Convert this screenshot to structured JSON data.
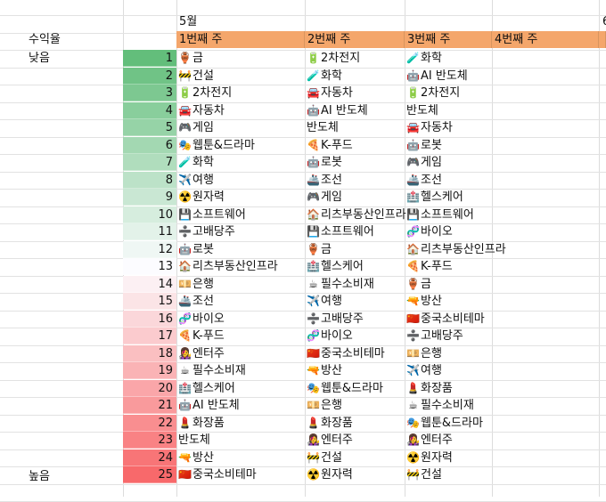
{
  "month_label": "5월",
  "next_col_fragment": "6",
  "row_label_title": "수익율",
  "label_low": "낮음",
  "label_high": "높음",
  "weeks": [
    "1번째 주",
    "2번째 주",
    "3번째 주",
    "4번째 주"
  ],
  "ranks": [
    1,
    2,
    3,
    4,
    5,
    6,
    7,
    8,
    9,
    10,
    11,
    12,
    13,
    14,
    15,
    16,
    17,
    18,
    19,
    20,
    21,
    22,
    23,
    24,
    25
  ],
  "columns": [
    [
      {
        "icon": "🏺",
        "name": "금"
      },
      {
        "icon": "🚧",
        "name": "건설"
      },
      {
        "icon": "🔋",
        "name": "2차전지"
      },
      {
        "icon": "🚘",
        "name": "자동차"
      },
      {
        "icon": "🎮",
        "name": "게임"
      },
      {
        "icon": "🎭",
        "name": "웹툰&드라마"
      },
      {
        "icon": "🧪",
        "name": "화학"
      },
      {
        "icon": "✈️",
        "name": "여행"
      },
      {
        "icon": "☢️",
        "name": "원자력"
      },
      {
        "icon": "💾",
        "name": "소프트웨어"
      },
      {
        "icon": "➗",
        "name": "고배당주"
      },
      {
        "icon": "🤖",
        "name": "로봇"
      },
      {
        "icon": "🏠",
        "name": "리츠부동산인프라"
      },
      {
        "icon": "💴",
        "name": "은행"
      },
      {
        "icon": "🚢",
        "name": "조선"
      },
      {
        "icon": "🧬",
        "name": "바이오"
      },
      {
        "icon": "🍕",
        "name": "K-푸드"
      },
      {
        "icon": "👩‍🎤",
        "name": "엔터주"
      },
      {
        "icon": "☕",
        "name": "필수소비재"
      },
      {
        "icon": "🏥",
        "name": "헬스케어"
      },
      {
        "icon": "🤖",
        "name": "AI 반도체"
      },
      {
        "icon": "💄",
        "name": "화장품"
      },
      {
        "icon": "",
        "name": "반도체"
      },
      {
        "icon": "🔫",
        "name": "방산"
      },
      {
        "icon": "🇨🇳",
        "name": "중국소비테마"
      }
    ],
    [
      {
        "icon": "🔋",
        "name": "2차전지"
      },
      {
        "icon": "🧪",
        "name": "화학"
      },
      {
        "icon": "🚘",
        "name": "자동차"
      },
      {
        "icon": "🤖",
        "name": "AI 반도체"
      },
      {
        "icon": "",
        "name": "반도체"
      },
      {
        "icon": "🍕",
        "name": "K-푸드"
      },
      {
        "icon": "🤖",
        "name": "로봇"
      },
      {
        "icon": "🚢",
        "name": "조선"
      },
      {
        "icon": "🎮",
        "name": "게임"
      },
      {
        "icon": "🏠",
        "name": "리츠부동산인프라"
      },
      {
        "icon": "💾",
        "name": "소프트웨어"
      },
      {
        "icon": "🏺",
        "name": "금"
      },
      {
        "icon": "🏥",
        "name": "헬스케어"
      },
      {
        "icon": "☕",
        "name": "필수소비재"
      },
      {
        "icon": "✈️",
        "name": "여행"
      },
      {
        "icon": "➗",
        "name": "고배당주"
      },
      {
        "icon": "🧬",
        "name": "바이오"
      },
      {
        "icon": "🇨🇳",
        "name": "중국소비테마"
      },
      {
        "icon": "🔫",
        "name": "방산"
      },
      {
        "icon": "🎭",
        "name": "웹툰&드라마"
      },
      {
        "icon": "💴",
        "name": "은행"
      },
      {
        "icon": "💄",
        "name": "화장품"
      },
      {
        "icon": "👩‍🎤",
        "name": "엔터주"
      },
      {
        "icon": "🚧",
        "name": "건설"
      },
      {
        "icon": "☢️",
        "name": "원자력"
      }
    ],
    [
      {
        "icon": "🧪",
        "name": "화학"
      },
      {
        "icon": "🤖",
        "name": "AI 반도체"
      },
      {
        "icon": "🔋",
        "name": "2차전지"
      },
      {
        "icon": "",
        "name": "반도체"
      },
      {
        "icon": "🚘",
        "name": "자동차"
      },
      {
        "icon": "🤖",
        "name": "로봇"
      },
      {
        "icon": "🎮",
        "name": "게임"
      },
      {
        "icon": "🚢",
        "name": "조선"
      },
      {
        "icon": "🏥",
        "name": "헬스케어"
      },
      {
        "icon": "💾",
        "name": "소프트웨어"
      },
      {
        "icon": "🧬",
        "name": "바이오"
      },
      {
        "icon": "🏠",
        "name": "리츠부동산인프라"
      },
      {
        "icon": "🍕",
        "name": "K-푸드"
      },
      {
        "icon": "🏺",
        "name": "금"
      },
      {
        "icon": "🔫",
        "name": "방산"
      },
      {
        "icon": "🇨🇳",
        "name": "중국소비테마"
      },
      {
        "icon": "➗",
        "name": "고배당주"
      },
      {
        "icon": "💴",
        "name": "은행"
      },
      {
        "icon": "✈️",
        "name": "여행"
      },
      {
        "icon": "💄",
        "name": "화장품"
      },
      {
        "icon": "☕",
        "name": "필수소비재"
      },
      {
        "icon": "🎭",
        "name": "웹툰&드라마"
      },
      {
        "icon": "👩‍🎤",
        "name": "엔터주"
      },
      {
        "icon": "☢️",
        "name": "원자력"
      },
      {
        "icon": "🚧",
        "name": "건설"
      }
    ]
  ],
  "colors": {
    "header_bg": "#f4a66b",
    "low_green": "#63be7b",
    "mid_white": "#fcfcff",
    "high_red": "#f8696b",
    "grid": "#dcdcdc"
  }
}
